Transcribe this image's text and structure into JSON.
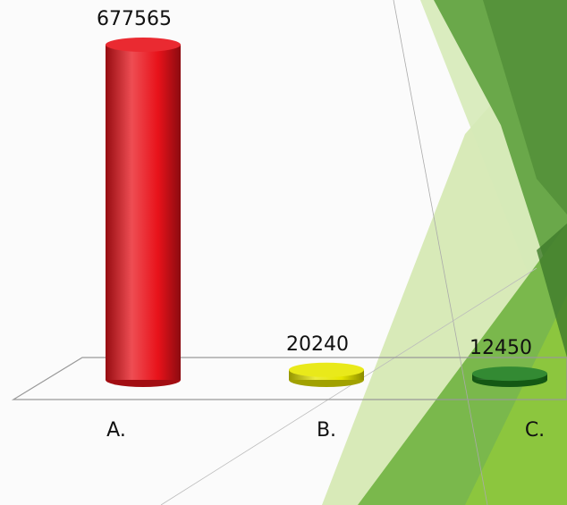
{
  "chart_data": {
    "type": "bar",
    "categories": [
      "A.",
      "B.",
      "C."
    ],
    "values": [
      677565,
      20240,
      12450
    ],
    "colors": [
      "#e8121a",
      "#e6e600",
      "#1c7d1c"
    ]
  }
}
